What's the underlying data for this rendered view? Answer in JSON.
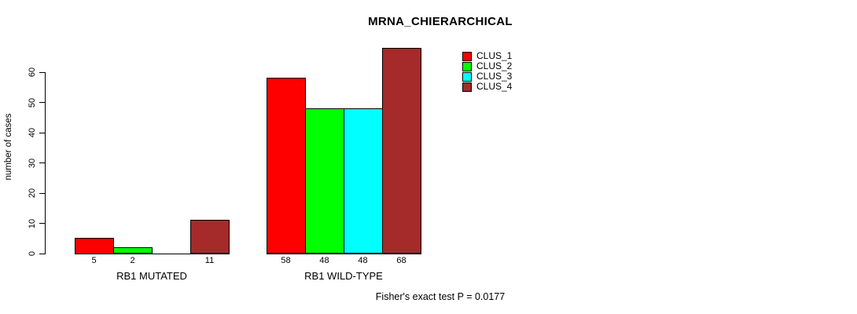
{
  "title": "MRNA_CHIERARCHICAL",
  "footer": "Fisher's exact test P = 0.0177",
  "y_axis": {
    "label": "number of cases",
    "ticks": [
      0,
      10,
      20,
      30,
      40,
      50,
      60
    ]
  },
  "legend": {
    "items": [
      {
        "label": "CLUS_1",
        "color": "#FF0000"
      },
      {
        "label": "CLUS_2",
        "color": "#00FF00"
      },
      {
        "label": "CLUS_3",
        "color": "#00FFFF"
      },
      {
        "label": "CLUS_4",
        "color": "#A52A2A"
      }
    ]
  },
  "chart_data": {
    "type": "bar",
    "title": "MRNA_CHIERARCHICAL",
    "xlabel": "",
    "ylabel": "number of cases",
    "ylim": [
      0,
      68
    ],
    "yticks": [
      0,
      10,
      20,
      30,
      40,
      50,
      60
    ],
    "grid": false,
    "legend_position": "top-right-inside",
    "categories": [
      "RB1 MUTATED",
      "RB1 WILD-TYPE"
    ],
    "series": [
      {
        "name": "CLUS_1",
        "color": "#FF0000",
        "values": [
          5,
          58
        ]
      },
      {
        "name": "CLUS_2",
        "color": "#00FF00",
        "values": [
          2,
          48
        ]
      },
      {
        "name": "CLUS_3",
        "color": "#00FFFF",
        "values": [
          0,
          48
        ]
      },
      {
        "name": "CLUS_4",
        "color": "#A52A2A",
        "values": [
          11,
          68
        ]
      }
    ],
    "bar_value_labels": [
      [
        "5",
        "2",
        "",
        "11"
      ],
      [
        "58",
        "48",
        "48",
        "68"
      ]
    ],
    "annotation": "Fisher's exact test P = 0.0177"
  }
}
